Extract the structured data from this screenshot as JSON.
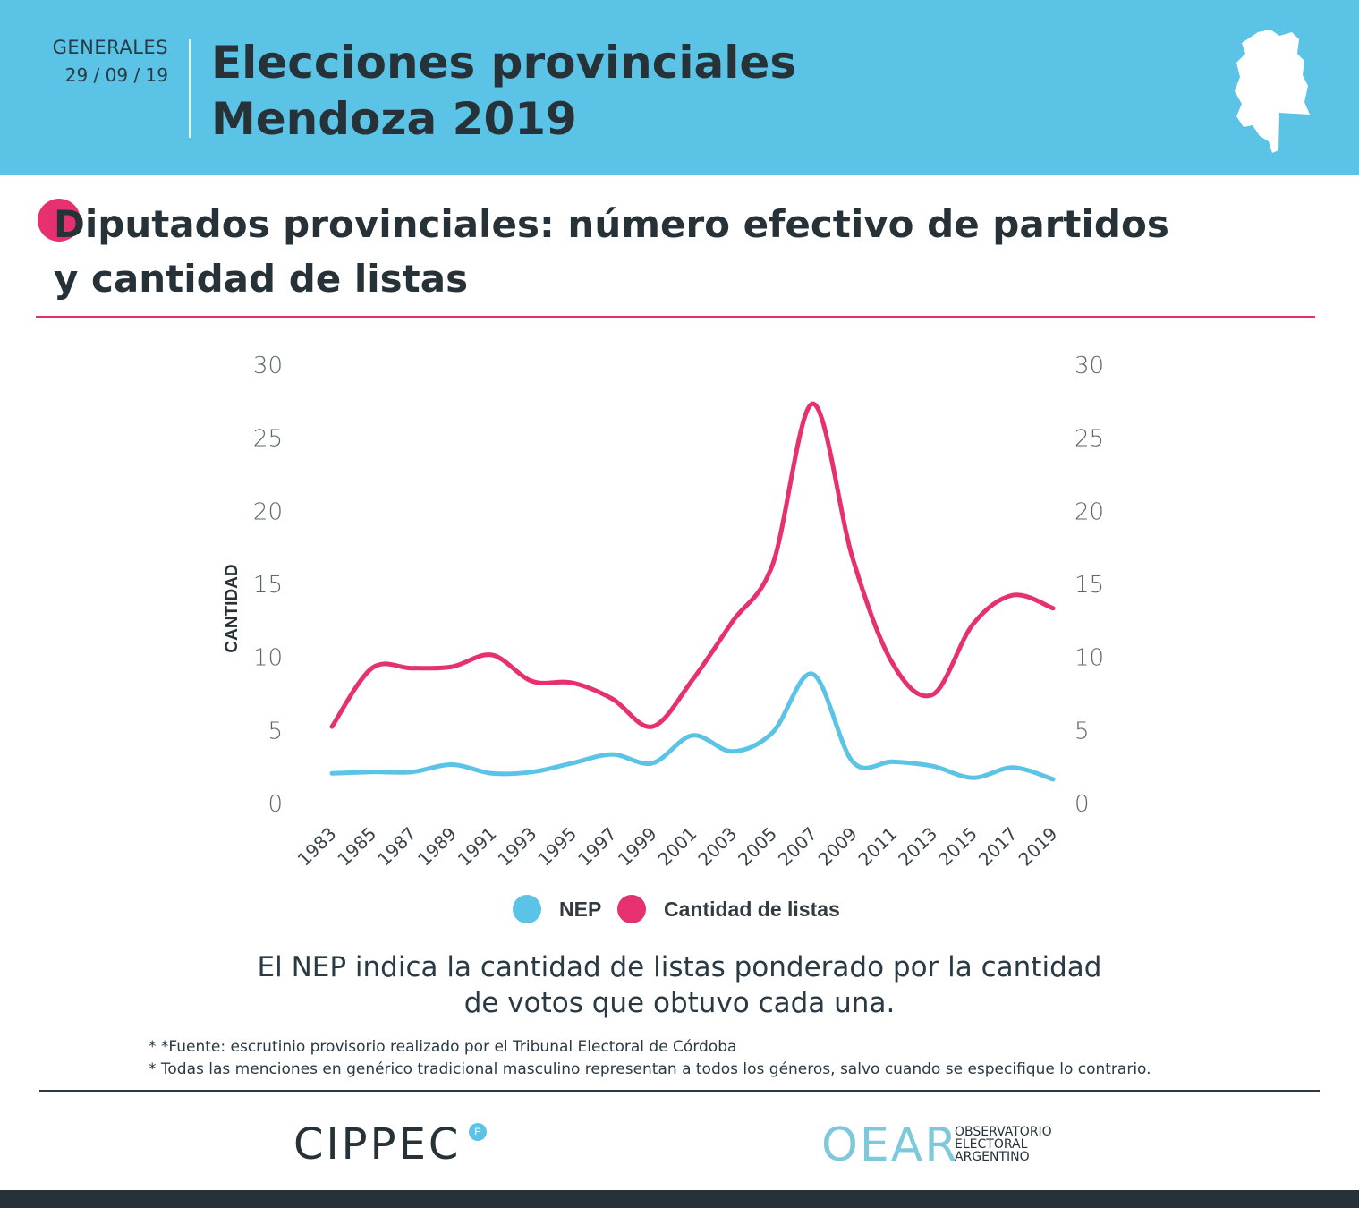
{
  "header": {
    "tag": "GENERALES",
    "date": "29 / 09 / 19",
    "title_line1": "Elecciones provinciales",
    "title_line2": "Mendoza 2019"
  },
  "chart_title": {
    "line1": "Diputados provinciales: número efectivo de partidos",
    "line2": "y cantidad de listas"
  },
  "colors": {
    "accent_blue": "#5bc3e5",
    "accent_pink": "#e6306f",
    "dark": "#263238"
  },
  "chart_data": {
    "type": "line",
    "title": "Diputados provinciales: número efectivo de partidos y cantidad de listas",
    "xlabel": "",
    "ylabel": "CANTIDAD",
    "ylim": [
      0,
      30
    ],
    "yticks": [
      0,
      5,
      10,
      15,
      20,
      25,
      30
    ],
    "grid": false,
    "categories": [
      "1983",
      "1985",
      "1987",
      "1989",
      "1991",
      "1993",
      "1995",
      "1997",
      "1999",
      "2001",
      "2003",
      "2005",
      "2007",
      "2009",
      "2011",
      "2013",
      "2015",
      "2017",
      "2019"
    ],
    "series": [
      {
        "name": "NEP",
        "color": "#5bc3e5",
        "values": [
          2.0,
          2.1,
          2.1,
          2.6,
          2.0,
          2.1,
          2.7,
          3.3,
          2.7,
          4.6,
          3.5,
          4.8,
          8.8,
          2.8,
          2.8,
          2.5,
          1.7,
          2.4,
          1.6
        ]
      },
      {
        "name": "Cantidad de listas",
        "color": "#e6306f",
        "values": [
          5.2,
          9.2,
          9.2,
          9.3,
          10.1,
          8.3,
          8.2,
          7.1,
          5.2,
          8.4,
          12.4,
          16.3,
          27.3,
          16.7,
          9.5,
          7.4,
          12.2,
          14.2,
          13.3
        ]
      }
    ],
    "legend": {
      "position": "bottom"
    }
  },
  "note": {
    "line1": "El NEP indica la cantidad de listas ponderado por la cantidad",
    "line2": "de votos que obtuvo cada una."
  },
  "footnotes": [
    "* *Fuente: escrutinio provisorio realizado por el Tribunal Electoral de Córdoba",
    "* Todas las menciones en genérico tradicional masculino representan a todos los géneros, salvo cuando se especifique lo contrario."
  ],
  "logos": {
    "cippec": "CIPPEC",
    "oear": "OEAR",
    "oear_line1": "OBSERVATORIO",
    "oear_line2": "ELECTORAL",
    "oear_line3": "ARGENTINO"
  }
}
